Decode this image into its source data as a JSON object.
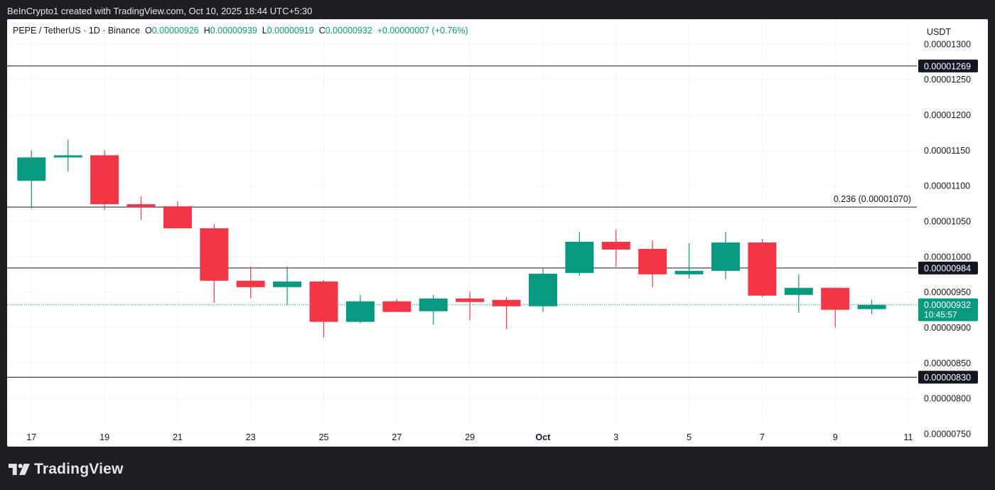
{
  "header": {
    "attribution": "BeInCrypto1 created with TradingView.com, Oct 10, 2025 18:44 UTC+5:30"
  },
  "legend": {
    "symbol": "PEPE / TetherUS · 1D · Binance",
    "o_label": "O",
    "o_value": "0.00000926",
    "h_label": "H",
    "h_value": "0.00000939",
    "l_label": "L",
    "l_value": "0.00000919",
    "c_label": "C",
    "c_value": "0.00000932",
    "change": "+0.00000007 (+0.76%)"
  },
  "currency": "USDT",
  "footer": {
    "brand": "TradingView",
    "logo_icon": "tradingview-logo-icon"
  },
  "colors": {
    "up": "#089981",
    "down": "#f23645",
    "line": "#131722",
    "grid": "#f0f3fa",
    "text": "#131722"
  },
  "chart_data": {
    "type": "candlestick",
    "x_tick_labels": [
      "17",
      "19",
      "21",
      "23",
      "25",
      "27",
      "29",
      "Oct",
      "3",
      "5",
      "7",
      "9",
      "11"
    ],
    "y_tick_labels": [
      "0.00001300",
      "0.00001250",
      "0.00001200",
      "0.00001150",
      "0.00001100",
      "0.00001050",
      "0.00001000",
      "0.00000950",
      "0.00000900",
      "0.00000850",
      "0.00000800",
      "0.00000750"
    ],
    "y_ticks": [
      1.3e-05,
      1.25e-05,
      1.2e-05,
      1.15e-05,
      1.1e-05,
      1.05e-05,
      1e-05,
      9.5e-06,
      9e-06,
      8.5e-06,
      8e-06,
      7.5e-06
    ],
    "ylim": [
      7.32e-06,
      1.335e-05
    ],
    "x_range_days": [
      16.8,
      41.7
    ],
    "x_ticks_day": [
      17,
      19,
      21,
      23,
      25,
      27,
      29,
      31,
      33,
      35,
      37,
      39,
      41
    ],
    "candles": [
      {
        "date": "Sep 17",
        "open": 1.107e-05,
        "high": 1.15e-05,
        "low": 1.068e-05,
        "close": 1.14e-05
      },
      {
        "date": "Sep 18",
        "open": 1.14e-05,
        "high": 1.165e-05,
        "low": 1.12e-05,
        "close": 1.143e-05
      },
      {
        "date": "Sep 19",
        "open": 1.143e-05,
        "high": 1.15e-05,
        "low": 1.066e-05,
        "close": 1.074e-05
      },
      {
        "date": "Sep 20",
        "open": 1.074e-05,
        "high": 1.085e-05,
        "low": 1.052e-05,
        "close": 1.07e-05
      },
      {
        "date": "Sep 21",
        "open": 1.071e-05,
        "high": 1.078e-05,
        "low": 1.04e-05,
        "close": 1.04e-05
      },
      {
        "date": "Sep 22",
        "open": 1.04e-05,
        "high": 1.046e-05,
        "low": 9.35e-06,
        "close": 9.66e-06
      },
      {
        "date": "Sep 23",
        "open": 9.66e-06,
        "high": 9.86e-06,
        "low": 9.41e-06,
        "close": 9.57e-06
      },
      {
        "date": "Sep 24",
        "open": 9.57e-06,
        "high": 9.86e-06,
        "low": 9.32e-06,
        "close": 9.65e-06
      },
      {
        "date": "Sep 25",
        "open": 9.65e-06,
        "high": 9.67e-06,
        "low": 8.86e-06,
        "close": 9.08e-06
      },
      {
        "date": "Sep 26",
        "open": 9.08e-06,
        "high": 9.46e-06,
        "low": 9.06e-06,
        "close": 9.37e-06
      },
      {
        "date": "Sep 27",
        "open": 9.37e-06,
        "high": 9.4e-06,
        "low": 9.22e-06,
        "close": 9.22e-06
      },
      {
        "date": "Sep 28",
        "open": 9.23e-06,
        "high": 9.46e-06,
        "low": 9.04e-06,
        "close": 9.41e-06
      },
      {
        "date": "Sep 29",
        "open": 9.41e-06,
        "high": 9.5e-06,
        "low": 9.1e-06,
        "close": 9.36e-06
      },
      {
        "date": "Sep 30",
        "open": 9.39e-06,
        "high": 9.43e-06,
        "low": 8.98e-06,
        "close": 9.3e-06
      },
      {
        "date": "Oct 1",
        "open": 9.3e-06,
        "high": 9.83e-06,
        "low": 9.22e-06,
        "close": 9.76e-06
      },
      {
        "date": "Oct 2",
        "open": 9.77e-06,
        "high": 1.035e-05,
        "low": 9.73e-06,
        "close": 1.021e-05
      },
      {
        "date": "Oct 3",
        "open": 1.021e-05,
        "high": 1.038e-05,
        "low": 9.86e-06,
        "close": 1.01e-05
      },
      {
        "date": "Oct 4",
        "open": 1.011e-05,
        "high": 1.023e-05,
        "low": 9.57e-06,
        "close": 9.75e-06
      },
      {
        "date": "Oct 5",
        "open": 9.75e-06,
        "high": 1.019e-05,
        "low": 9.69e-06,
        "close": 9.8e-06
      },
      {
        "date": "Oct 6",
        "open": 9.8e-06,
        "high": 1.035e-05,
        "low": 9.68e-06,
        "close": 1.02e-05
      },
      {
        "date": "Oct 7",
        "open": 1.02e-05,
        "high": 1.025e-05,
        "low": 9.43e-06,
        "close": 9.45e-06
      },
      {
        "date": "Oct 8",
        "open": 9.46e-06,
        "high": 9.75e-06,
        "low": 9.21e-06,
        "close": 9.56e-06
      },
      {
        "date": "Oct 9",
        "open": 9.56e-06,
        "high": 9.56e-06,
        "low": 9e-06,
        "close": 9.25e-06
      },
      {
        "date": "Oct 10",
        "open": 9.26e-06,
        "high": 9.39e-06,
        "low": 9.19e-06,
        "close": 9.32e-06
      }
    ],
    "horizontal_lines": [
      {
        "value": 1.269e-05,
        "label": "0.00001269"
      },
      {
        "value": 1.07e-05,
        "label": "0.236 (0.00001070)"
      },
      {
        "value": 9.84e-06,
        "label": "0.00000984"
      },
      {
        "value": 8.3e-06,
        "label": "0.00000830"
      }
    ],
    "last_price": {
      "value": 9.32e-06,
      "label": "0.00000932",
      "countdown": "10:45:57"
    }
  }
}
